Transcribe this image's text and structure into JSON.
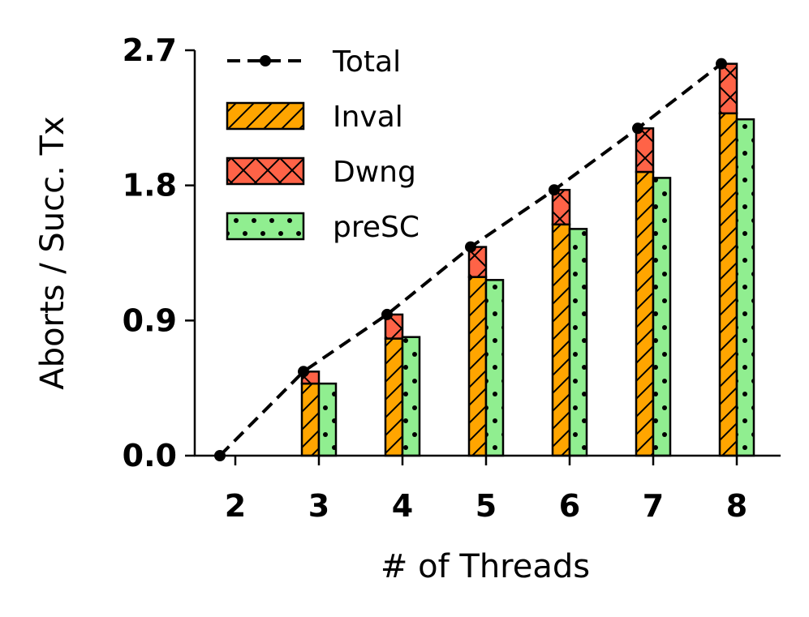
{
  "chart_data": {
    "type": "bar",
    "xlabel": "# of Threads",
    "ylabel": "Aborts / Succ. Tx",
    "categories": [
      "2",
      "3",
      "4",
      "5",
      "6",
      "7",
      "8"
    ],
    "yticks": [
      "0.0",
      "0.9",
      "1.8",
      "2.7"
    ],
    "ylim": [
      0,
      2.7
    ],
    "grid": false,
    "legend_position": "top-left",
    "series": [
      {
        "name": "Total",
        "kind": "line",
        "style": "dashed",
        "color": "#000000",
        "values": [
          0.0,
          0.56,
          0.94,
          1.39,
          1.77,
          2.18,
          2.61
        ]
      },
      {
        "name": "Inval",
        "kind": "stacked-bar",
        "hatch": "diagonal",
        "color": "#FFA500",
        "values": [
          0.0,
          0.48,
          0.78,
          1.19,
          1.54,
          1.89,
          2.28
        ]
      },
      {
        "name": "Dwng",
        "kind": "stacked-bar",
        "hatch": "cross",
        "color": "#FF6347",
        "values": [
          0.0,
          0.08,
          0.16,
          0.2,
          0.23,
          0.29,
          0.33
        ]
      },
      {
        "name": "preSC",
        "kind": "bar",
        "hatch": "dots",
        "color": "#90EE90",
        "values": [
          0.0,
          0.48,
          0.79,
          1.17,
          1.51,
          1.85,
          2.24
        ]
      }
    ]
  }
}
